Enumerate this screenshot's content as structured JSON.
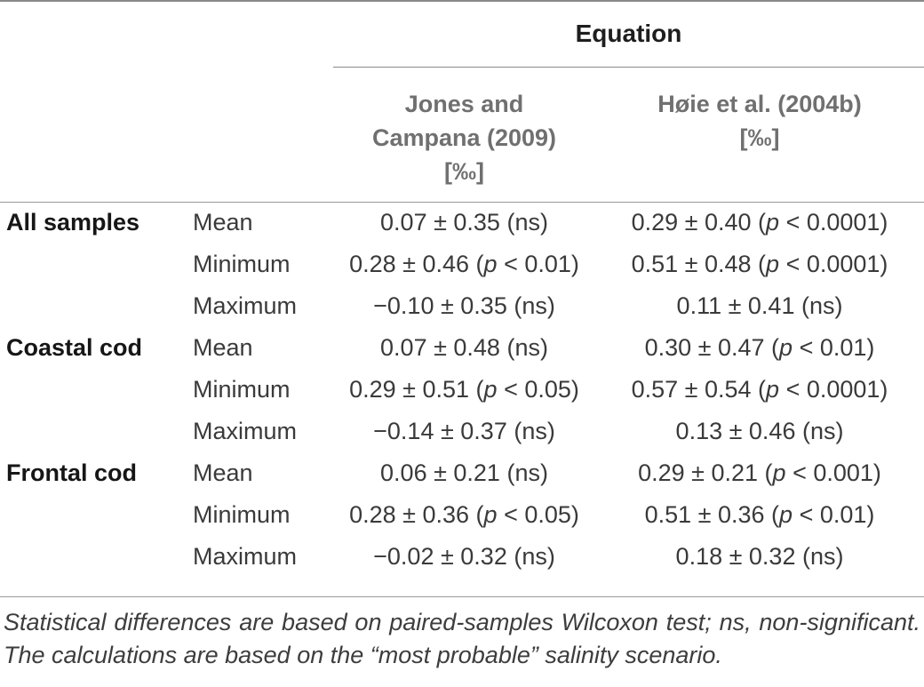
{
  "table": {
    "span_header": "Equation",
    "columns": [
      {
        "id": "jones",
        "label_lines": [
          "Jones and",
          "Campana (2009)",
          "[‰]"
        ]
      },
      {
        "id": "hoie",
        "label_lines": [
          "Høie et al. (2004b)",
          "[‰]"
        ]
      }
    ],
    "groups": [
      {
        "label": "All samples",
        "rows": [
          {
            "stat": "Mean",
            "jones": "0.07 ± 0.35 (ns)",
            "hoie": "0.29 ± 0.40 (p < 0.0001)"
          },
          {
            "stat": "Minimum",
            "jones": "0.28 ± 0.46 (p < 0.01)",
            "hoie": "0.51 ± 0.48 (p < 0.0001)"
          },
          {
            "stat": "Maximum",
            "jones": "−0.10 ± 0.35 (ns)",
            "hoie": "0.11 ± 0.41 (ns)"
          }
        ]
      },
      {
        "label": "Coastal cod",
        "rows": [
          {
            "stat": "Mean",
            "jones": "0.07 ± 0.48 (ns)",
            "hoie": "0.30 ± 0.47 (p < 0.01)"
          },
          {
            "stat": "Minimum",
            "jones": "0.29 ± 0.51 (p < 0.05)",
            "hoie": "0.57 ± 0.54 (p < 0.0001)"
          },
          {
            "stat": "Maximum",
            "jones": "−0.14 ± 0.37 (ns)",
            "hoie": "0.13 ± 0.46 (ns)"
          }
        ]
      },
      {
        "label": "Frontal cod",
        "rows": [
          {
            "stat": "Mean",
            "jones": "0.06 ± 0.21 (ns)",
            "hoie": "0.29 ± 0.21 (p < 0.001)"
          },
          {
            "stat": "Minimum",
            "jones": "0.28 ± 0.36 (p < 0.05)",
            "hoie": "0.51 ± 0.36 (p < 0.01)"
          },
          {
            "stat": "Maximum",
            "jones": "−0.02 ± 0.32 (ns)",
            "hoie": "0.18 ± 0.32 (ns)"
          }
        ]
      }
    ],
    "footnote": "Statistical differences are based on paired-samples Wilcoxon test; ns, non-significant. The calculations are based on the “most probable” salinity scenario."
  }
}
